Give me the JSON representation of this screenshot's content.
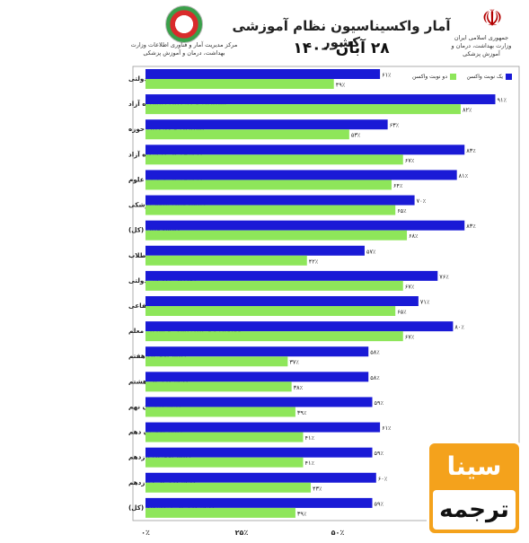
{
  "header": {
    "title": "آمار واکسیناسیون نظام آموزشی کشور",
    "date": "۲۸ آبان ۱۴۰۰",
    "left_org": "مرکز مدیریت آمار و فناوری اطلاعات وزارت بهداشت، درمان و آموزش پزشکی",
    "right_org": "جمهوری اسلامی ایران وزارت بهداشت، درمان و آموزش پزشکی"
  },
  "legend": {
    "first_dose": "یک نوبت واکسن",
    "second_dose": "دو نوبت واکسن"
  },
  "watermark": {
    "line1": "سینا",
    "line2": "ترجمه"
  },
  "colors": {
    "first_dose": "#1a1ad6",
    "second_dose": "#8ee65a"
  },
  "chart_data": {
    "type": "bar",
    "orientation": "horizontal",
    "categories": [
      "استادان و کارکنان دانشگاه‌های دولتی",
      "استادان و کارکنان دانشگاه آزاد",
      "استادان و کارکنان حوزه",
      "دانشجویان دانشگاه آزاد",
      "دانشجویان وزارت علوم",
      "دانشجویان علوم پزشکی",
      "دانشجویان (کل)",
      "طلاب",
      "معلمان مدارس دولتی",
      "معلمان مدارس غیرانتفاعی",
      "معلمان حق التدریسی و سرباز معلم",
      "دانش‌آموزان هفتم",
      "دانش‌آموزان هشتم",
      "دانش‌آموزان نهم",
      "دانش‌آموزان دهم",
      "دانش‌آموزان یازدهم",
      "دانش‌آموزان دوازدهم",
      "دانش‌آموزان متوسطه (کل)"
    ],
    "series": [
      {
        "name": "یک نوبت واکسن",
        "values": [
          61,
          91,
          63,
          83,
          81,
          70,
          83,
          57,
          76,
          71,
          80,
          58,
          58,
          59,
          61,
          59,
          60,
          59
        ],
        "labels": [
          "۶۱٪",
          "۹۱٪",
          "۶۳٪",
          "۸۳٪",
          "۸۱٪",
          "۷۰٪",
          "۸۳٪",
          "۵۷٪",
          "۷۶٪",
          "۷۱٪",
          "۸۰٪",
          "۵۸٪",
          "۵۸٪",
          "۵۹٪",
          "۶۱٪",
          "۵۹٪",
          "۶۰٪",
          "۵۹٪"
        ]
      },
      {
        "name": "دو نوبت واکسن",
        "values": [
          49,
          82,
          53,
          67,
          64,
          65,
          68,
          42,
          67,
          65,
          67,
          37,
          38,
          39,
          41,
          41,
          43,
          39
        ],
        "labels": [
          "۴۹٪",
          "۸۲٪",
          "۵۳٪",
          "۶۷٪",
          "۶۴٪",
          "۶۵٪",
          "۶۸٪",
          "۴۲٪",
          "۶۷٪",
          "۶۵٪",
          "۶۷٪",
          "۳۷٪",
          "۳۸٪",
          "۳۹٪",
          "۴۱٪",
          "۴۱٪",
          "۴۳٪",
          "۳۹٪"
        ]
      }
    ],
    "xlim": [
      0,
      100
    ],
    "xticks": [
      "۰٪",
      "۲۵٪",
      "۵۰٪"
    ],
    "xtick_values": [
      0,
      25,
      50
    ],
    "grid": false,
    "legend_position": "top-right"
  }
}
